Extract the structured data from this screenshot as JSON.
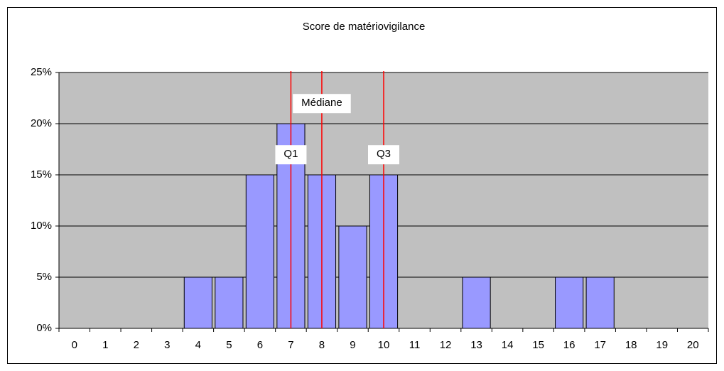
{
  "chart_data": {
    "type": "bar",
    "title": "Score de matériovigilance",
    "categories": [
      "0",
      "1",
      "2",
      "3",
      "4",
      "5",
      "6",
      "7",
      "8",
      "9",
      "10",
      "11",
      "12",
      "13",
      "14",
      "15",
      "16",
      "17",
      "18",
      "19",
      "20"
    ],
    "values": [
      0,
      0,
      0,
      0,
      5,
      5,
      15,
      20,
      15,
      10,
      15,
      0,
      0,
      5,
      0,
      0,
      5,
      5,
      0,
      0,
      0
    ],
    "color": "#9999ff",
    "ylim": [
      0,
      25
    ],
    "yticks": [
      {
        "value": 0,
        "label": "0%"
      },
      {
        "value": 5,
        "label": "5%"
      },
      {
        "value": 10,
        "label": "10%"
      },
      {
        "value": 15,
        "label": "15%"
      },
      {
        "value": 20,
        "label": "20%"
      },
      {
        "value": 25,
        "label": "25%"
      }
    ],
    "grid": true,
    "annotations": [
      {
        "label": "Q1",
        "x": 7,
        "y": 17,
        "color": "#ff0000"
      },
      {
        "label": "Médiane",
        "x": 8,
        "y": 22,
        "color": "#ff0000"
      },
      {
        "label": "Q3",
        "x": 10,
        "y": 17,
        "color": "#ff0000"
      }
    ]
  }
}
